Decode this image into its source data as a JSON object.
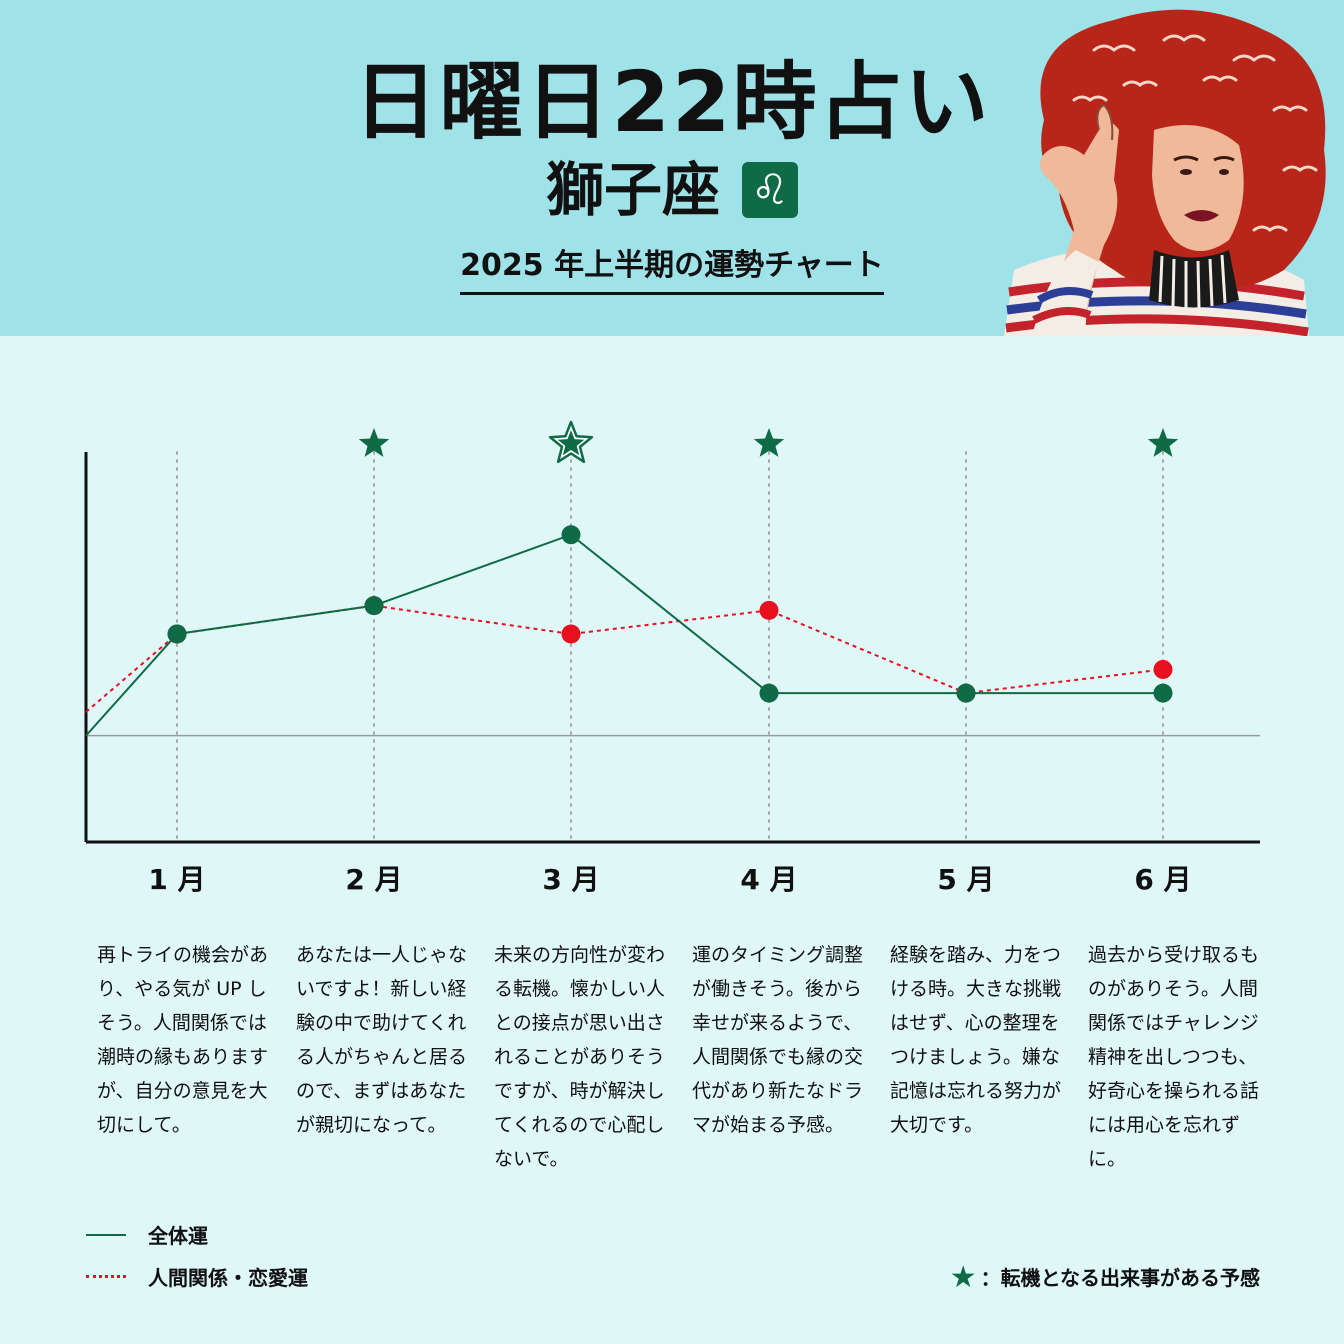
{
  "header": {
    "title": "日曜日22時占い",
    "sign_name": "獅子座",
    "sign_symbol": "♌",
    "subtitle": "2025 年上半期の運勢チャート"
  },
  "colors": {
    "header_bg": "#9fe2e8",
    "page_bg": "#e0f7f8",
    "overall": "#0f6b45",
    "love": "#e8101e",
    "star": "#0f6b45"
  },
  "chart_data": {
    "type": "line",
    "categories": [
      "1 月",
      "2 月",
      "3 月",
      "4 月",
      "5 月",
      "6 月"
    ],
    "start_values": {
      "overall": 0,
      "love": 1
    },
    "series": [
      {
        "name": "全体運",
        "style": "solid",
        "color": "#0f6b45",
        "values": [
          4.3,
          5.5,
          8.5,
          1.8,
          1.8,
          1.8
        ]
      },
      {
        "name": "人間関係・恋愛運",
        "style": "dotted",
        "color": "#e8101e",
        "values": [
          4.3,
          5.5,
          4.3,
          5.3,
          1.8,
          2.8
        ]
      }
    ],
    "turning_point_stars": [
      false,
      true,
      true,
      true,
      false,
      true
    ],
    "highlight_star_index": 2,
    "ylim": [
      -4.5,
      12
    ],
    "baseline": 0,
    "grid": "vertical-dotted"
  },
  "descriptions": [
    "再トライの機会があり、やる気が UP しそう。人間関係では潮時の縁もありますが、自分の意見を大切にして。",
    "あなたは一人じゃないですよ！新しい経験の中で助けてくれる人がちゃんと居るので、まずはあなたが親切になって。",
    "未来の方向性が変わる転機。懐かしい人との接点が思い出されることがありそうですが、時が解決してくれるので心配しないで。",
    "運のタイミング調整が働きそう。後から幸せが来るようで、人間関係でも縁の交代があり新たなドラマが始まる予感。",
    "経験を踏み、力をつける時。大きな挑戦はせず、心の整理をつけましょう。嫌な記憶は忘れる努力が大切です。",
    "過去から受け取るものがありそう。人間関係ではチャレンジ精神を出しつつも、好奇心を操られる話には用心を忘れずに。"
  ],
  "legend": {
    "overall": "全体運",
    "love": "人間関係・恋愛運",
    "star_icon": "star-icon",
    "star_label": "：転機となる出来事がある予感"
  }
}
